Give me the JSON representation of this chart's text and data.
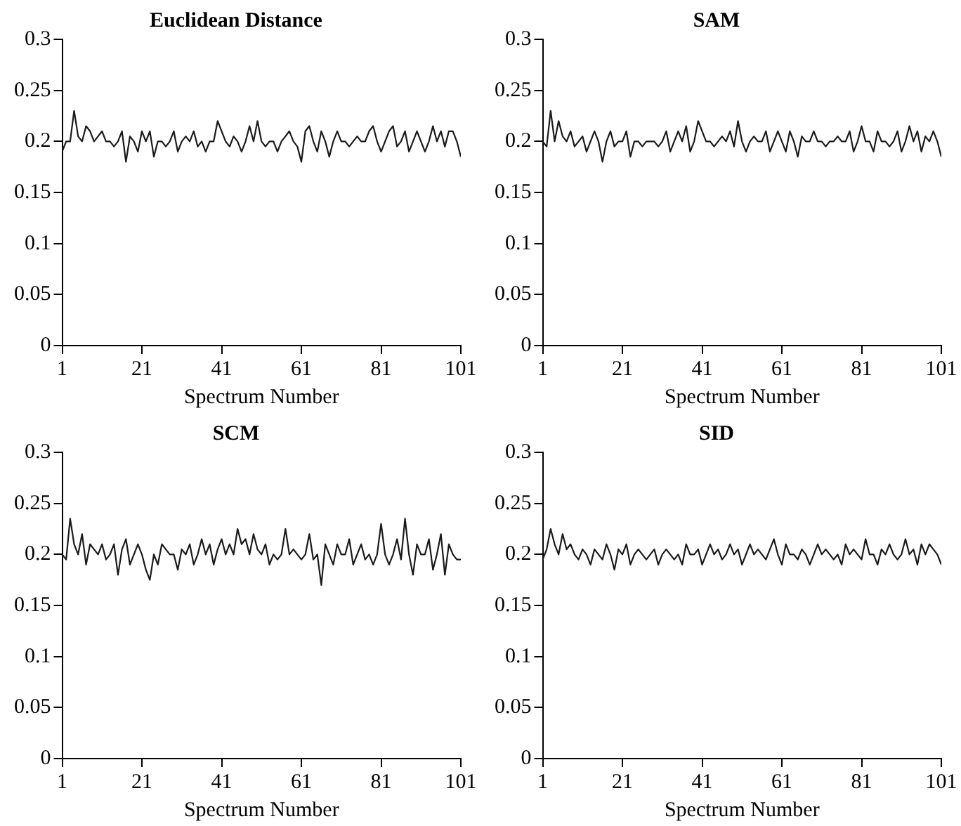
{
  "chart_data": [
    {
      "type": "line",
      "title": "Euclidean Distance",
      "xlabel": "Spectrum Number",
      "xlim": [
        1,
        101
      ],
      "xticks": [
        1,
        21,
        41,
        61,
        81,
        101
      ],
      "ylim": [
        0,
        0.3
      ],
      "yticks": [
        0,
        0.05,
        0.1,
        0.15,
        0.2,
        0.25,
        0.3
      ],
      "marker": "none",
      "x": [
        1,
        2,
        3,
        4,
        5,
        6,
        7,
        8,
        9,
        10,
        11,
        12,
        13,
        14,
        15,
        16,
        17,
        18,
        19,
        20,
        21,
        22,
        23,
        24,
        25,
        26,
        27,
        28,
        29,
        30,
        31,
        32,
        33,
        34,
        35,
        36,
        37,
        38,
        39,
        40,
        41,
        42,
        43,
        44,
        45,
        46,
        47,
        48,
        49,
        50,
        51,
        52,
        53,
        54,
        55,
        56,
        57,
        58,
        59,
        60,
        61,
        62,
        63,
        64,
        65,
        66,
        67,
        68,
        69,
        70,
        71,
        72,
        73,
        74,
        75,
        76,
        77,
        78,
        79,
        80,
        81,
        82,
        83,
        84,
        85,
        86,
        87,
        88,
        89,
        90,
        91,
        92,
        93,
        94,
        95,
        96,
        97,
        98,
        99,
        100,
        101
      ],
      "series": [
        {
          "color": "#1a1a1a",
          "values": [
            0.19,
            0.2,
            0.2,
            0.23,
            0.205,
            0.2,
            0.215,
            0.21,
            0.2,
            0.205,
            0.21,
            0.2,
            0.2,
            0.195,
            0.2,
            0.21,
            0.18,
            0.205,
            0.2,
            0.19,
            0.21,
            0.2,
            0.21,
            0.185,
            0.2,
            0.2,
            0.195,
            0.2,
            0.21,
            0.19,
            0.2,
            0.205,
            0.2,
            0.21,
            0.195,
            0.2,
            0.19,
            0.2,
            0.2,
            0.22,
            0.21,
            0.2,
            0.195,
            0.205,
            0.2,
            0.19,
            0.2,
            0.215,
            0.2,
            0.22,
            0.2,
            0.195,
            0.2,
            0.2,
            0.19,
            0.2,
            0.205,
            0.21,
            0.2,
            0.195,
            0.18,
            0.21,
            0.215,
            0.2,
            0.19,
            0.21,
            0.2,
            0.185,
            0.2,
            0.21,
            0.2,
            0.2,
            0.195,
            0.2,
            0.205,
            0.2,
            0.2,
            0.21,
            0.215,
            0.2,
            0.19,
            0.2,
            0.21,
            0.215,
            0.195,
            0.2,
            0.21,
            0.19,
            0.2,
            0.21,
            0.2,
            0.19,
            0.2,
            0.215,
            0.2,
            0.21,
            0.195,
            0.21,
            0.21,
            0.2,
            0.185
          ]
        }
      ]
    },
    {
      "type": "line",
      "title": "SAM",
      "xlabel": "Spectrum Number",
      "xlim": [
        1,
        101
      ],
      "xticks": [
        1,
        21,
        41,
        61,
        81,
        101
      ],
      "ylim": [
        0,
        0.3
      ],
      "yticks": [
        0,
        0.05,
        0.1,
        0.15,
        0.2,
        0.25,
        0.3
      ],
      "marker": "none",
      "x": [
        1,
        2,
        3,
        4,
        5,
        6,
        7,
        8,
        9,
        10,
        11,
        12,
        13,
        14,
        15,
        16,
        17,
        18,
        19,
        20,
        21,
        22,
        23,
        24,
        25,
        26,
        27,
        28,
        29,
        30,
        31,
        32,
        33,
        34,
        35,
        36,
        37,
        38,
        39,
        40,
        41,
        42,
        43,
        44,
        45,
        46,
        47,
        48,
        49,
        50,
        51,
        52,
        53,
        54,
        55,
        56,
        57,
        58,
        59,
        60,
        61,
        62,
        63,
        64,
        65,
        66,
        67,
        68,
        69,
        70,
        71,
        72,
        73,
        74,
        75,
        76,
        77,
        78,
        79,
        80,
        81,
        82,
        83,
        84,
        85,
        86,
        87,
        88,
        89,
        90,
        91,
        92,
        93,
        94,
        95,
        96,
        97,
        98,
        99,
        100,
        101
      ],
      "series": [
        {
          "color": "#1a1a1a",
          "values": [
            0.2,
            0.195,
            0.23,
            0.2,
            0.22,
            0.205,
            0.2,
            0.21,
            0.195,
            0.2,
            0.205,
            0.19,
            0.2,
            0.21,
            0.2,
            0.18,
            0.2,
            0.21,
            0.195,
            0.2,
            0.2,
            0.21,
            0.185,
            0.2,
            0.2,
            0.195,
            0.2,
            0.2,
            0.2,
            0.195,
            0.2,
            0.21,
            0.19,
            0.2,
            0.21,
            0.2,
            0.215,
            0.19,
            0.2,
            0.22,
            0.21,
            0.2,
            0.2,
            0.195,
            0.2,
            0.205,
            0.2,
            0.21,
            0.195,
            0.22,
            0.2,
            0.19,
            0.2,
            0.205,
            0.2,
            0.2,
            0.21,
            0.19,
            0.2,
            0.21,
            0.2,
            0.19,
            0.21,
            0.2,
            0.185,
            0.205,
            0.2,
            0.2,
            0.21,
            0.2,
            0.2,
            0.195,
            0.2,
            0.2,
            0.205,
            0.2,
            0.2,
            0.21,
            0.19,
            0.2,
            0.215,
            0.2,
            0.2,
            0.19,
            0.21,
            0.2,
            0.2,
            0.195,
            0.2,
            0.21,
            0.19,
            0.2,
            0.215,
            0.2,
            0.21,
            0.19,
            0.205,
            0.2,
            0.21,
            0.2,
            0.185
          ]
        }
      ]
    },
    {
      "type": "line",
      "title": "SCM",
      "xlabel": "Spectrum Number",
      "xlim": [
        1,
        101
      ],
      "xticks": [
        1,
        21,
        41,
        61,
        81,
        101
      ],
      "ylim": [
        0,
        0.3
      ],
      "yticks": [
        0,
        0.05,
        0.1,
        0.15,
        0.2,
        0.25,
        0.3
      ],
      "marker": "none",
      "x": [
        1,
        2,
        3,
        4,
        5,
        6,
        7,
        8,
        9,
        10,
        11,
        12,
        13,
        14,
        15,
        16,
        17,
        18,
        19,
        20,
        21,
        22,
        23,
        24,
        25,
        26,
        27,
        28,
        29,
        30,
        31,
        32,
        33,
        34,
        35,
        36,
        37,
        38,
        39,
        40,
        41,
        42,
        43,
        44,
        45,
        46,
        47,
        48,
        49,
        50,
        51,
        52,
        53,
        54,
        55,
        56,
        57,
        58,
        59,
        60,
        61,
        62,
        63,
        64,
        65,
        66,
        67,
        68,
        69,
        70,
        71,
        72,
        73,
        74,
        75,
        76,
        77,
        78,
        79,
        80,
        81,
        82,
        83,
        84,
        85,
        86,
        87,
        88,
        89,
        90,
        91,
        92,
        93,
        94,
        95,
        96,
        97,
        98,
        99,
        100,
        101
      ],
      "series": [
        {
          "color": "#1a1a1a",
          "values": [
            0.2,
            0.195,
            0.235,
            0.21,
            0.2,
            0.22,
            0.19,
            0.21,
            0.205,
            0.2,
            0.21,
            0.195,
            0.2,
            0.21,
            0.18,
            0.205,
            0.215,
            0.19,
            0.2,
            0.21,
            0.2,
            0.185,
            0.175,
            0.2,
            0.19,
            0.21,
            0.205,
            0.2,
            0.2,
            0.185,
            0.205,
            0.2,
            0.21,
            0.19,
            0.2,
            0.215,
            0.2,
            0.21,
            0.19,
            0.205,
            0.215,
            0.2,
            0.21,
            0.2,
            0.225,
            0.21,
            0.215,
            0.2,
            0.22,
            0.205,
            0.2,
            0.21,
            0.19,
            0.2,
            0.195,
            0.2,
            0.225,
            0.2,
            0.205,
            0.2,
            0.195,
            0.2,
            0.22,
            0.195,
            0.2,
            0.17,
            0.21,
            0.2,
            0.19,
            0.21,
            0.2,
            0.2,
            0.215,
            0.19,
            0.2,
            0.21,
            0.195,
            0.2,
            0.19,
            0.2,
            0.23,
            0.2,
            0.19,
            0.2,
            0.215,
            0.195,
            0.235,
            0.2,
            0.18,
            0.21,
            0.2,
            0.2,
            0.215,
            0.185,
            0.2,
            0.22,
            0.18,
            0.21,
            0.2,
            0.195,
            0.195
          ]
        }
      ]
    },
    {
      "type": "line",
      "title": "SID",
      "xlabel": "Spectrum Number",
      "xlim": [
        1,
        101
      ],
      "xticks": [
        1,
        21,
        41,
        61,
        81,
        101
      ],
      "ylim": [
        0,
        0.3
      ],
      "yticks": [
        0,
        0.05,
        0.1,
        0.15,
        0.2,
        0.25,
        0.3
      ],
      "marker": "none",
      "x": [
        1,
        2,
        3,
        4,
        5,
        6,
        7,
        8,
        9,
        10,
        11,
        12,
        13,
        14,
        15,
        16,
        17,
        18,
        19,
        20,
        21,
        22,
        23,
        24,
        25,
        26,
        27,
        28,
        29,
        30,
        31,
        32,
        33,
        34,
        35,
        36,
        37,
        38,
        39,
        40,
        41,
        42,
        43,
        44,
        45,
        46,
        47,
        48,
        49,
        50,
        51,
        52,
        53,
        54,
        55,
        56,
        57,
        58,
        59,
        60,
        61,
        62,
        63,
        64,
        65,
        66,
        67,
        68,
        69,
        70,
        71,
        72,
        73,
        74,
        75,
        76,
        77,
        78,
        79,
        80,
        81,
        82,
        83,
        84,
        85,
        86,
        87,
        88,
        89,
        90,
        91,
        92,
        93,
        94,
        95,
        96,
        97,
        98,
        99,
        100,
        101
      ],
      "series": [
        {
          "color": "#1a1a1a",
          "values": [
            0.195,
            0.205,
            0.225,
            0.21,
            0.2,
            0.22,
            0.205,
            0.21,
            0.2,
            0.195,
            0.205,
            0.2,
            0.19,
            0.205,
            0.2,
            0.195,
            0.21,
            0.2,
            0.185,
            0.205,
            0.2,
            0.21,
            0.19,
            0.2,
            0.205,
            0.2,
            0.195,
            0.2,
            0.205,
            0.19,
            0.2,
            0.205,
            0.2,
            0.195,
            0.2,
            0.19,
            0.21,
            0.2,
            0.2,
            0.205,
            0.19,
            0.2,
            0.21,
            0.2,
            0.205,
            0.195,
            0.2,
            0.21,
            0.2,
            0.205,
            0.19,
            0.2,
            0.21,
            0.2,
            0.205,
            0.2,
            0.195,
            0.205,
            0.215,
            0.2,
            0.19,
            0.21,
            0.2,
            0.2,
            0.195,
            0.205,
            0.2,
            0.19,
            0.2,
            0.21,
            0.2,
            0.205,
            0.2,
            0.195,
            0.2,
            0.19,
            0.21,
            0.2,
            0.205,
            0.2,
            0.195,
            0.215,
            0.2,
            0.2,
            0.19,
            0.205,
            0.2,
            0.21,
            0.2,
            0.195,
            0.2,
            0.215,
            0.2,
            0.205,
            0.19,
            0.21,
            0.2,
            0.21,
            0.205,
            0.2,
            0.19
          ]
        }
      ]
    }
  ]
}
